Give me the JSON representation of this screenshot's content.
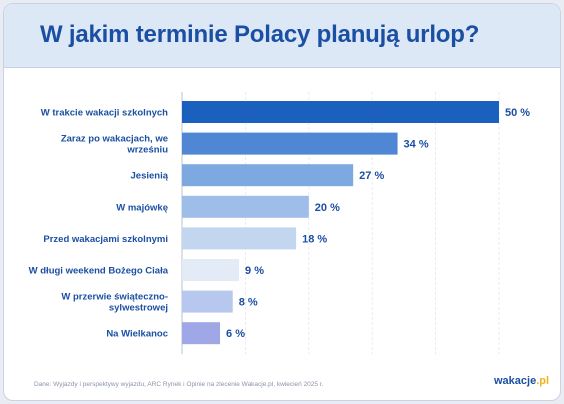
{
  "title": "W jakim terminie Polacy planują urlop?",
  "chart_data": {
    "type": "bar",
    "orientation": "horizontal",
    "categories": [
      [
        "W trakcie wakacji szkolnych"
      ],
      [
        "Zaraz po wakacjach, we",
        "wrześniu"
      ],
      [
        "Jesienią"
      ],
      [
        "W majówkę"
      ],
      [
        "Przed wakacjami szkolnymi"
      ],
      [
        "W długi weekend Bożego Ciała"
      ],
      [
        "W przerwie świąteczno-",
        "sylwestrowej"
      ],
      [
        "Na Wielkanoc"
      ]
    ],
    "values": [
      50,
      34,
      27,
      20,
      18,
      9,
      8,
      6
    ],
    "value_labels": [
      "50 %",
      "34 %",
      "27 %",
      "20 %",
      "18 %",
      "9 %",
      "8 %",
      "6 %"
    ],
    "colors": [
      "#1b5fbf",
      "#4f87d4",
      "#7ea8e0",
      "#9ebde8",
      "#c2d6f0",
      "#e3ebf7",
      "#b8c7ee",
      "#a0a7e6"
    ],
    "xlim": [
      0,
      50
    ],
    "grid": true
  },
  "footer": {
    "source": "Dane: Wyjazdy i perspektywy wyjazdu, ARC Rynek i Opinie na zlecenie Wakacje.pl, kwiecień 2025 r.",
    "logo_main": "wakacje",
    "logo_suffix": ".pl"
  }
}
